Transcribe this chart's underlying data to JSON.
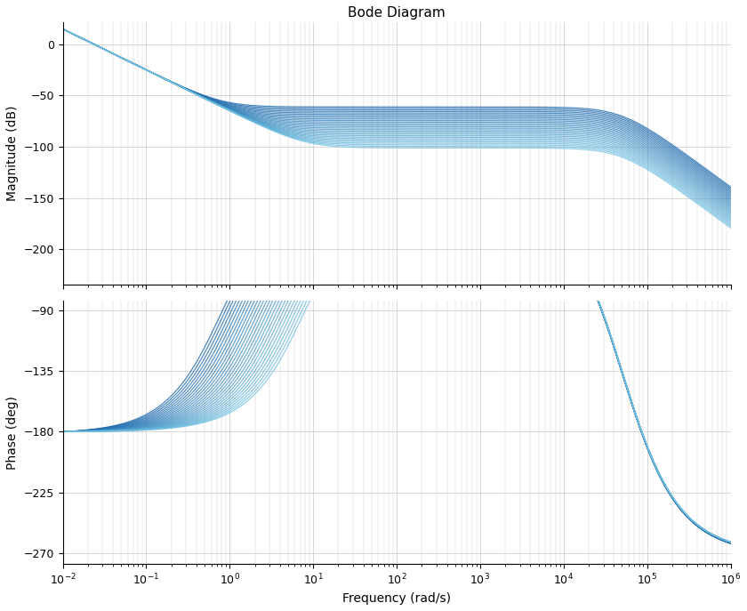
{
  "title": "Bode Diagram",
  "xlabel": "Frequency (rad/s)",
  "mag_ylabel": "Magnitude (dB)",
  "phase_ylabel": "Phase (deg)",
  "freq_lo": 0.01,
  "freq_hi": 1000000,
  "mag_ylim": [
    -235,
    22
  ],
  "phase_ylim": [
    -278,
    -83
  ],
  "mag_yticks": [
    0,
    -50,
    -100,
    -150,
    -200
  ],
  "phase_yticks": [
    -90,
    -135,
    -180,
    -225,
    -270
  ],
  "line_color_dark": "#1461a8",
  "line_color_light": "#70bfe0",
  "line_alpha": 0.75,
  "line_width": 0.9,
  "background_color": "#ffffff",
  "grid_color": "#c8c8c8",
  "num_curves": 28,
  "title_fontsize": 11,
  "label_fontsize": 10,
  "tick_fontsize": 9,
  "fig_width": 8.4,
  "fig_height": 6.87,
  "dpi": 100
}
